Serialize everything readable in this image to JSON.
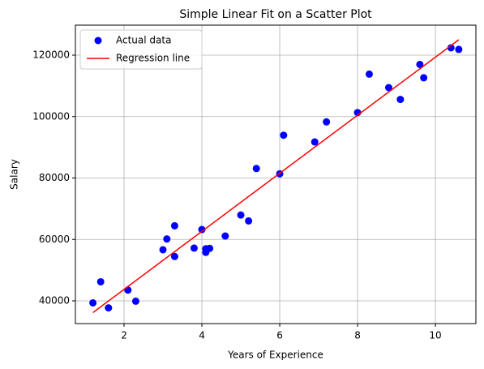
{
  "chart_data": {
    "type": "scatter",
    "title": "Simple Linear Fit on a Scatter Plot",
    "x_label": "Years of Experience",
    "y_label": "Salary",
    "xlim": [
      0.75,
      11.04
    ],
    "ylim": [
      32607,
      129770
    ],
    "xticks": [
      2,
      4,
      6,
      8,
      10
    ],
    "yticks": [
      40000,
      60000,
      80000,
      100000,
      120000
    ],
    "grid": true,
    "legend": "upper-left",
    "series": [
      {
        "name": "Actual data",
        "color": "#0000ff",
        "kind": "points",
        "x": [
          1.2,
          1.4,
          1.6,
          2.1,
          2.3,
          3.0,
          3.1,
          3.3,
          3.3,
          3.8,
          4.0,
          4.1,
          4.1,
          4.2,
          4.6,
          5.0,
          5.2,
          5.4,
          6.0,
          6.1,
          6.9,
          7.2,
          8.0,
          8.3,
          8.8,
          9.1,
          9.6,
          9.7,
          10.4,
          10.6
        ],
        "values": [
          39344,
          46206,
          37732,
          43526,
          39892,
          56643,
          60151,
          54446,
          64446,
          57190,
          63219,
          55795,
          56958,
          57082,
          61112,
          67939,
          66030,
          83089,
          81364,
          93941,
          91739,
          98274,
          101303,
          113813,
          109432,
          105583,
          116970,
          112636,
          122392,
          121873
        ]
      },
      {
        "name": "Regression line",
        "color": "#ff0000",
        "kind": "line",
        "x": [
          1.2,
          10.6
        ],
        "values": [
          36188,
          125018
        ]
      }
    ]
  }
}
